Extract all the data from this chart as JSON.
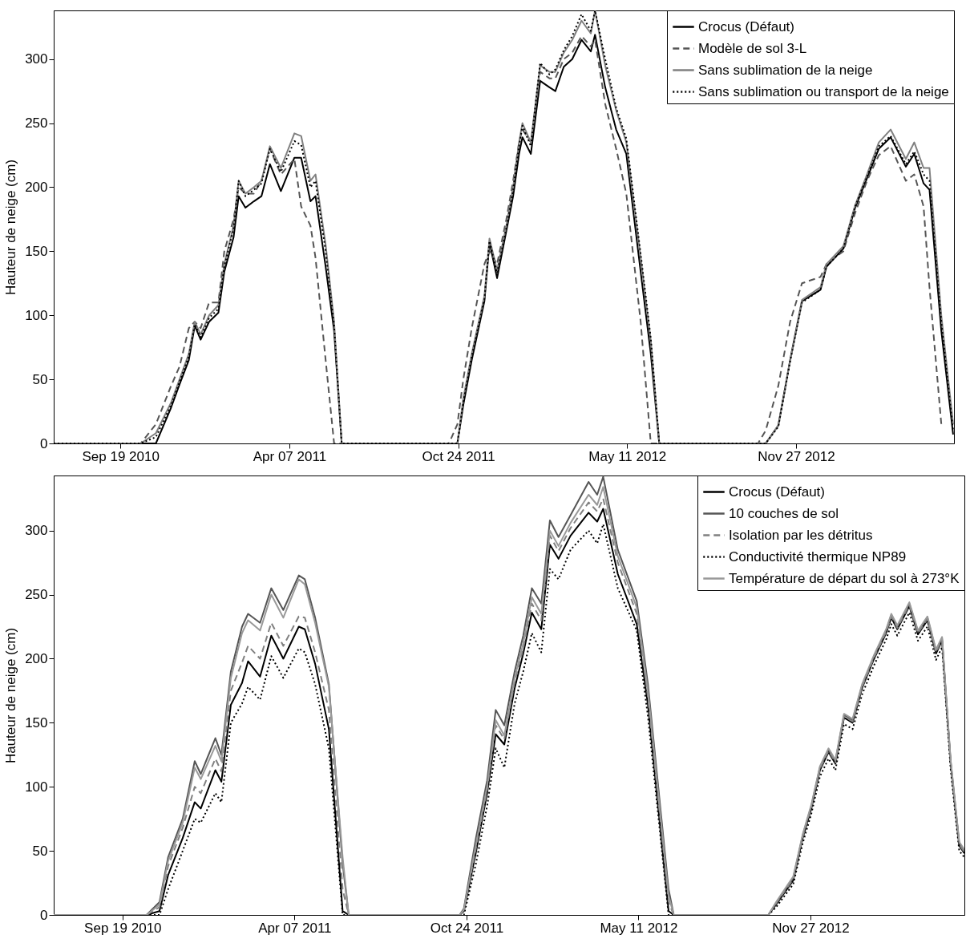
{
  "chart_data": [
    {
      "type": "line",
      "ylabel": "Hauteur de neige (cm)",
      "legend": "top right",
      "xlim": [
        "2010-07-02",
        "2013-06-02"
      ],
      "ylim": [
        0,
        338
      ],
      "yticks": [
        0,
        50,
        100,
        150,
        200,
        250,
        300
      ],
      "xticks": [
        {
          "value": "2010-09-19",
          "label": "Sep 19 2010"
        },
        {
          "value": "2011-04-07",
          "label": "Apr 07 2011"
        },
        {
          "value": "2011-10-24",
          "label": "Oct 24 2011"
        },
        {
          "value": "2012-05-11",
          "label": "May 11 2012"
        },
        {
          "value": "2012-11-27",
          "label": "Nov 27 2012"
        }
      ],
      "x": [
        "2010-07-02",
        "2010-10-13",
        "2010-10-31",
        "2010-11-18",
        "2010-11-28",
        "2010-12-09",
        "2010-12-16",
        "2010-12-23",
        "2011-01-02",
        "2011-01-13",
        "2011-01-20",
        "2011-01-31",
        "2011-02-06",
        "2011-02-14",
        "2011-02-24",
        "2011-03-05",
        "2011-03-15",
        "2011-03-28",
        "2011-04-13",
        "2011-04-21",
        "2011-05-02",
        "2011-05-08",
        "2011-05-20",
        "2011-05-30",
        "2011-06-08",
        "2011-10-13",
        "2011-10-23",
        "2011-10-30",
        "2011-11-09",
        "2011-11-24",
        "2011-11-30",
        "2011-12-09",
        "2011-12-20",
        "2011-12-28",
        "2012-01-04",
        "2012-01-08",
        "2012-01-18",
        "2012-01-29",
        "2012-02-09",
        "2012-02-16",
        "2012-02-26",
        "2012-03-07",
        "2012-03-18",
        "2012-03-29",
        "2012-04-03",
        "2012-04-15",
        "2012-04-28",
        "2012-05-10",
        "2012-05-27",
        "2012-06-08",
        "2012-06-18",
        "2012-10-13",
        "2012-10-22",
        "2012-11-06",
        "2012-11-20",
        "2012-12-04",
        "2012-12-26",
        "2013-01-02",
        "2013-01-22",
        "2013-02-05",
        "2013-02-19",
        "2013-03-05",
        "2013-03-19",
        "2013-04-06",
        "2013-04-16",
        "2013-04-27",
        "2013-05-04",
        "2013-05-18",
        "2013-06-01"
      ],
      "series": [
        {
          "name": "Crocus (Défaut)",
          "color": "#000000",
          "line_style": "solid",
          "values": [
            0,
            0,
            0,
            28,
            46,
            65,
            92,
            81,
            95,
            102,
            134,
            161,
            193,
            184,
            189,
            193,
            218,
            197,
            223,
            223,
            189,
            193,
            138,
            88,
            0,
            0,
            0,
            30,
            65,
            111,
            157,
            129,
            166,
            193,
            226,
            239,
            226,
            283,
            278,
            275,
            294,
            300,
            315,
            306,
            319,
            278,
            245,
            226,
            134,
            70,
            0,
            0,
            0,
            14,
            65,
            111,
            120,
            138,
            152,
            184,
            207,
            230,
            239,
            216,
            226,
            203,
            198,
            88,
            7
          ]
        },
        {
          "name": "Modèle de sol 3-L",
          "color": "#555555",
          "line_style": "dashed",
          "values": [
            0,
            0,
            15,
            45,
            60,
            90,
            95,
            90,
            110,
            110,
            150,
            175,
            200,
            195,
            195,
            205,
            230,
            210,
            222,
            185,
            170,
            145,
            65,
            0,
            0,
            0,
            15,
            50,
            90,
            140,
            150,
            140,
            175,
            205,
            235,
            245,
            235,
            290,
            285,
            285,
            300,
            305,
            318,
            310,
            315,
            265,
            230,
            195,
            95,
            0,
            0,
            0,
            10,
            45,
            95,
            125,
            130,
            140,
            150,
            180,
            205,
            225,
            232,
            205,
            210,
            185,
            122,
            15,
            null
          ]
        },
        {
          "name": "Sans sublimation de la neige",
          "color": "#808080",
          "line_style": "solid",
          "values": [
            0,
            0,
            8,
            32,
            50,
            70,
            95,
            85,
            100,
            108,
            140,
            170,
            205,
            195,
            200,
            205,
            232,
            215,
            242,
            240,
            205,
            210,
            155,
            95,
            0,
            0,
            0,
            35,
            70,
            115,
            160,
            135,
            170,
            200,
            235,
            250,
            235,
            295,
            290,
            290,
            305,
            315,
            330,
            320,
            338,
            295,
            260,
            235,
            145,
            80,
            0,
            0,
            0,
            14,
            65,
            112,
            122,
            140,
            154,
            186,
            210,
            235,
            245,
            222,
            235,
            215,
            215,
            100,
            15
          ]
        },
        {
          "name": "Sans sublimation ou transport de la neige",
          "color": "#000000",
          "line_style": "dotted",
          "values": [
            0,
            0,
            5,
            30,
            48,
            68,
            93,
            83,
            98,
            105,
            138,
            168,
            205,
            193,
            198,
            203,
            230,
            212,
            236,
            233,
            200,
            205,
            150,
            92,
            0,
            0,
            0,
            32,
            68,
            113,
            158,
            133,
            168,
            198,
            232,
            248,
            232,
            297,
            288,
            292,
            307,
            318,
            335,
            322,
            338,
            300,
            262,
            238,
            148,
            82,
            0,
            0,
            0,
            13,
            64,
            110,
            120,
            138,
            152,
            185,
            208,
            232,
            240,
            218,
            228,
            210,
            205,
            95,
            10
          ]
        }
      ]
    },
    {
      "type": "line",
      "ylabel": "Hauteur de neige (cm)",
      "legend": "top right",
      "xlim": [
        "2010-07-01",
        "2013-05-25"
      ],
      "ylim": [
        0,
        343
      ],
      "yticks": [
        0,
        50,
        100,
        150,
        200,
        250,
        300
      ],
      "xticks": [
        {
          "value": "2010-09-19",
          "label": "Sep 19 2010"
        },
        {
          "value": "2011-04-07",
          "label": "Apr 07 2011"
        },
        {
          "value": "2011-10-24",
          "label": "Oct 24 2011"
        },
        {
          "value": "2012-05-11",
          "label": "May 11 2012"
        },
        {
          "value": "2012-11-27",
          "label": "Nov 27 2012"
        }
      ],
      "x": [
        "2010-07-01",
        "2010-10-17",
        "2010-11-01",
        "2010-11-11",
        "2010-11-28",
        "2010-12-12",
        "2010-12-19",
        "2011-01-05",
        "2011-01-12",
        "2011-01-23",
        "2011-02-05",
        "2011-02-12",
        "2011-02-26",
        "2011-03-11",
        "2011-03-25",
        "2011-04-12",
        "2011-04-19",
        "2011-05-01",
        "2011-05-17",
        "2011-06-02",
        "2011-06-09",
        "2011-10-16",
        "2011-10-21",
        "2011-11-04",
        "2011-11-17",
        "2011-11-27",
        "2011-12-07",
        "2011-12-19",
        "2011-12-29",
        "2012-01-08",
        "2012-01-19",
        "2012-01-29",
        "2012-02-08",
        "2012-02-22",
        "2012-03-14",
        "2012-03-24",
        "2012-03-31",
        "2012-04-17",
        "2012-05-09",
        "2012-05-22",
        "2012-06-15",
        "2012-06-21",
        "2012-10-09",
        "2012-10-18",
        "2012-11-07",
        "2012-11-18",
        "2012-11-28",
        "2012-12-08",
        "2012-12-18",
        "2012-12-26",
        "2013-01-05",
        "2013-01-15",
        "2013-01-26",
        "2013-02-09",
        "2013-02-23",
        "2013-03-01",
        "2013-03-08",
        "2013-03-22",
        "2013-04-01",
        "2013-04-12",
        "2013-04-22",
        "2013-04-29",
        "2013-05-09",
        "2013-05-19",
        "2013-05-25"
      ],
      "series": [
        {
          "name": "Crocus (Défaut)",
          "color": "#000000",
          "line_style": "solid",
          "values": [
            0,
            0,
            3,
            31,
            60,
            88,
            83,
            113,
            104,
            164,
            181,
            198,
            186,
            218,
            200,
            225,
            223,
            196,
            145,
            3,
            0,
            0,
            3,
            49,
            95,
            141,
            133,
            177,
            204,
            236,
            223,
            289,
            278,
            296,
            314,
            307,
            317,
            266,
            227,
            164,
            3,
            0,
            0,
            8,
            27,
            60,
            83,
            113,
            127,
            118,
            154,
            150,
            177,
            200,
            220,
            232,
            223,
            241,
            219,
            230,
            204,
            214,
            118,
            54,
            48
          ]
        },
        {
          "name": "10 couches de sol",
          "color": "#555555",
          "line_style": "solid",
          "values": [
            0,
            0,
            10,
            45,
            75,
            120,
            110,
            138,
            125,
            190,
            225,
            235,
            228,
            255,
            238,
            265,
            262,
            232,
            180,
            40,
            0,
            0,
            5,
            60,
            105,
            160,
            148,
            190,
            218,
            255,
            243,
            308,
            295,
            312,
            338,
            328,
            342,
            285,
            245,
            180,
            20,
            0,
            0,
            9,
            29,
            62,
            85,
            115,
            129,
            120,
            156,
            152,
            179,
            202,
            222,
            234,
            225,
            243,
            221,
            232,
            206,
            216,
            120,
            56,
            50
          ]
        },
        {
          "name": "Isolation par les détritus",
          "color": "#808080",
          "line_style": "dashed",
          "values": [
            0,
            0,
            6,
            38,
            68,
            100,
            95,
            122,
            112,
            175,
            197,
            210,
            200,
            228,
            210,
            233,
            232,
            205,
            160,
            20,
            0,
            0,
            4,
            52,
            98,
            148,
            137,
            182,
            208,
            243,
            230,
            296,
            284,
            302,
            322,
            315,
            325,
            275,
            235,
            170,
            10,
            0,
            0,
            9,
            28,
            61,
            84,
            114,
            128,
            119,
            155,
            151,
            178,
            201,
            221,
            233,
            224,
            242,
            220,
            231,
            205,
            215,
            119,
            55,
            49
          ]
        },
        {
          "name": "Conductivité thermique NP89",
          "color": "#000000",
          "line_style": "dotted",
          "values": [
            0,
            0,
            0,
            20,
            50,
            75,
            72,
            95,
            88,
            150,
            165,
            178,
            168,
            202,
            185,
            208,
            205,
            180,
            130,
            0,
            0,
            0,
            0,
            40,
            85,
            130,
            115,
            165,
            190,
            220,
            205,
            270,
            262,
            285,
            300,
            290,
            305,
            255,
            222,
            155,
            0,
            0,
            0,
            6,
            24,
            56,
            79,
            108,
            122,
            113,
            149,
            145,
            172,
            195,
            215,
            227,
            218,
            236,
            214,
            225,
            199,
            209,
            114,
            50,
            45
          ]
        },
        {
          "name": "Température de départ du sol à 273°K",
          "color": "#999999",
          "line_style": "solid",
          "values": [
            0,
            0,
            8,
            42,
            72,
            115,
            106,
            132,
            120,
            185,
            220,
            230,
            222,
            250,
            232,
            262,
            258,
            228,
            178,
            45,
            0,
            0,
            4,
            55,
            100,
            152,
            140,
            185,
            212,
            248,
            235,
            300,
            288,
            306,
            328,
            320,
            334,
            280,
            240,
            175,
            15,
            0,
            0,
            10,
            30,
            63,
            86,
            116,
            130,
            121,
            157,
            153,
            180,
            203,
            223,
            235,
            226,
            244,
            222,
            233,
            207,
            217,
            121,
            57,
            51
          ]
        }
      ]
    }
  ]
}
